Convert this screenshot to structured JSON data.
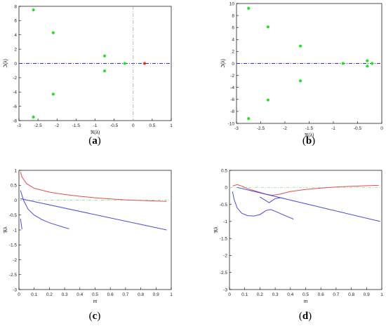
{
  "colors": {
    "green": "#22dd22",
    "red": "#ee2222",
    "blue": "#4a4adc",
    "red_curve": "#e05050",
    "dash_blue": "#2f2fcc",
    "dash_green": "#9fdf9f",
    "axis": "#000000",
    "vline": "#aaaaaa"
  },
  "chart_data": [
    {
      "panel": "(a)",
      "type": "scatter",
      "title": "",
      "xlabel": "ℜ(λ)",
      "ylabel": "ℑ(λ)",
      "xlim": [
        -3,
        1
      ],
      "ylim": [
        -8,
        8
      ],
      "xticks": [
        -3,
        -2.5,
        -2,
        -1.5,
        -1,
        -0.5,
        0,
        0.5,
        1
      ],
      "xtick_labels": [
        "-3",
        "-2.5",
        "-2",
        "-1.5",
        "-1",
        "-0.5",
        "0",
        "0.5",
        "1"
      ],
      "yticks": [
        -8,
        -6,
        -4,
        -2,
        0,
        2,
        4,
        6,
        8
      ],
      "ytick_labels": [
        "-8",
        "-6",
        "-4",
        "-2",
        "0",
        "2",
        "4",
        "6",
        "8"
      ],
      "hline_y": 0,
      "vline_x": 0,
      "series": [
        {
          "color": "green",
          "points": [
            [
              -2.62,
              7.5
            ],
            [
              -2.62,
              -7.5
            ],
            [
              -2.1,
              4.3
            ],
            [
              -2.1,
              -4.3
            ],
            [
              -0.75,
              1.05
            ],
            [
              -0.75,
              -1.05
            ],
            [
              -0.22,
              0.0
            ]
          ]
        },
        {
          "color": "red",
          "points": [
            [
              0.3,
              0.0
            ]
          ]
        }
      ]
    },
    {
      "panel": "(b)",
      "type": "scatter",
      "title": "",
      "xlabel": "ℜ(λ)",
      "ylabel": "ℑ(λ)",
      "xlim": [
        -3,
        0
      ],
      "ylim": [
        -10,
        10
      ],
      "xticks": [
        -3,
        -2.5,
        -2,
        -1.5,
        -1,
        -0.5,
        0
      ],
      "xtick_labels": [
        "-3",
        "-2.5",
        "-2",
        "-1.5",
        "-1",
        "-0.5",
        "0"
      ],
      "yticks": [
        -10,
        -8,
        -6,
        -4,
        -2,
        0,
        2,
        4,
        6,
        8,
        10
      ],
      "ytick_labels": [
        "-10",
        "-8",
        "-6",
        "-4",
        "-2",
        "0",
        "2",
        "4",
        "6",
        "8",
        "10"
      ],
      "hline_y": 0,
      "series": [
        {
          "color": "green",
          "points": [
            [
              -2.75,
              9.2
            ],
            [
              -2.75,
              -9.2
            ],
            [
              -2.35,
              6.1
            ],
            [
              -2.35,
              -6.1
            ],
            [
              -1.68,
              2.9
            ],
            [
              -1.68,
              -2.9
            ],
            [
              -0.8,
              0.0
            ],
            [
              -0.3,
              0.45
            ],
            [
              -0.3,
              -0.45
            ],
            [
              -0.2,
              0.0
            ]
          ]
        }
      ]
    },
    {
      "panel": "(c)",
      "type": "line",
      "title": "",
      "xlabel": "m",
      "ylabel": "ℜλ",
      "xlim": [
        0,
        1
      ],
      "ylim": [
        -3,
        1
      ],
      "xticks": [
        0,
        0.1,
        0.2,
        0.3,
        0.4,
        0.5,
        0.6,
        0.7,
        0.8,
        0.9,
        1
      ],
      "xtick_labels": [
        "0",
        "0.1",
        "0.2",
        "0.3",
        "0.4",
        "0.5",
        "0.6",
        "0.7",
        "0.8",
        "0.9",
        "1"
      ],
      "yticks": [
        -3,
        -2.5,
        -2,
        -1.5,
        -1,
        -0.5,
        0,
        0.5,
        1
      ],
      "ytick_labels": [
        "-3",
        "-2.5",
        "-2",
        "-1.5",
        "-1",
        "-0.5",
        "0",
        "0.5",
        "1"
      ],
      "zero_line_color": "dash_green",
      "series": [
        {
          "color": "red_curve",
          "points": [
            [
              0.01,
              0.95
            ],
            [
              0.02,
              0.78
            ],
            [
              0.05,
              0.55
            ],
            [
              0.1,
              0.4
            ],
            [
              0.2,
              0.27
            ],
            [
              0.3,
              0.19
            ],
            [
              0.4,
              0.13
            ],
            [
              0.5,
              0.08
            ],
            [
              0.6,
              0.04
            ],
            [
              0.7,
              0.01
            ],
            [
              0.8,
              -0.01
            ],
            [
              0.9,
              -0.03
            ],
            [
              0.97,
              -0.04
            ]
          ]
        },
        {
          "color": "blue",
          "points": [
            [
              0.01,
              0.05
            ],
            [
              0.97,
              -1.0
            ]
          ]
        },
        {
          "color": "blue",
          "points": [
            [
              0.01,
              0.33
            ],
            [
              0.03,
              0.0
            ],
            [
              0.06,
              -0.3
            ],
            [
              0.1,
              -0.5
            ],
            [
              0.15,
              -0.65
            ],
            [
              0.2,
              -0.76
            ],
            [
              0.25,
              -0.84
            ],
            [
              0.3,
              -0.92
            ],
            [
              0.33,
              -0.96
            ]
          ]
        },
        {
          "color": "blue",
          "points": [
            [
              0.01,
              -0.62
            ],
            [
              0.02,
              -0.98
            ]
          ]
        }
      ]
    },
    {
      "panel": "(d)",
      "type": "line",
      "title": "",
      "xlabel": "m",
      "ylabel": "ℜλ",
      "xlim": [
        0,
        1
      ],
      "ylim": [
        -3,
        0.5
      ],
      "xticks": [
        0,
        0.1,
        0.2,
        0.3,
        0.4,
        0.5,
        0.6,
        0.7,
        0.8,
        0.9,
        1
      ],
      "xtick_labels": [
        "0",
        "0.1",
        "0.2",
        "0.3",
        "0.4",
        "0.5",
        "0.6",
        "0.7",
        "0.8",
        "0.9",
        "1"
      ],
      "yticks": [
        -3,
        -2.5,
        -2,
        -1.5,
        -1,
        -0.5,
        0,
        0.5
      ],
      "ytick_labels": [
        "-3",
        "-2.5",
        "-2",
        "-1.5",
        "-1",
        "-0.5",
        "0",
        "0.5"
      ],
      "zero_line_color": "dash_green",
      "series": [
        {
          "color": "red_curve",
          "points": [
            [
              0.02,
              0.04
            ],
            [
              0.05,
              0.08
            ],
            [
              0.08,
              0.04
            ],
            [
              0.12,
              -0.04
            ],
            [
              0.18,
              -0.12
            ],
            [
              0.24,
              -0.2
            ],
            [
              0.28,
              -0.23
            ],
            [
              0.33,
              -0.2
            ],
            [
              0.4,
              -0.12
            ],
            [
              0.5,
              -0.06
            ],
            [
              0.6,
              -0.02
            ],
            [
              0.7,
              0.01
            ],
            [
              0.8,
              0.03
            ],
            [
              0.9,
              0.05
            ],
            [
              0.98,
              0.06
            ]
          ]
        },
        {
          "color": "blue",
          "points": [
            [
              0.05,
              0.0
            ],
            [
              0.99,
              -1.0
            ]
          ]
        },
        {
          "color": "blue",
          "points": [
            [
              0.02,
              -0.12
            ],
            [
              0.03,
              -0.35
            ],
            [
              0.05,
              -0.6
            ],
            [
              0.08,
              -0.76
            ],
            [
              0.12,
              -0.83
            ],
            [
              0.16,
              -0.84
            ],
            [
              0.2,
              -0.8
            ],
            [
              0.24,
              -0.68
            ],
            [
              0.27,
              -0.65
            ],
            [
              0.3,
              -0.7
            ],
            [
              0.36,
              -0.82
            ],
            [
              0.42,
              -0.93
            ]
          ]
        },
        {
          "color": "blue",
          "points": [
            [
              0.2,
              -0.28
            ],
            [
              0.26,
              -0.45
            ],
            [
              0.3,
              -0.33
            ],
            [
              0.34,
              -0.3
            ]
          ]
        }
      ]
    }
  ]
}
